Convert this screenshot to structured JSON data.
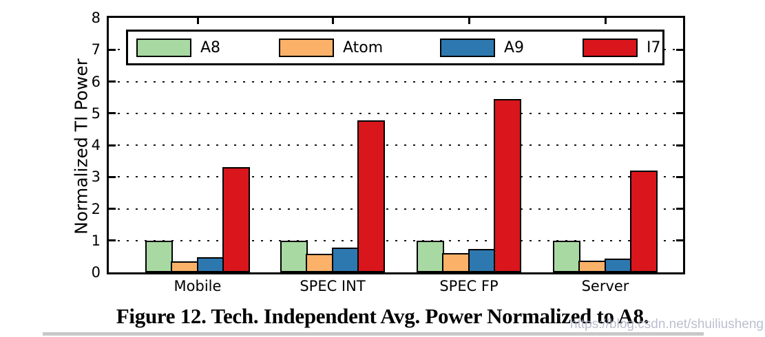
{
  "figure": {
    "caption": "Figure 12. Tech. Independent Avg. Power Normalized to A8.",
    "watermark": "https://blog.csdn.net/shuiliusheng"
  },
  "chart_data": {
    "type": "bar",
    "title": "",
    "xlabel": "",
    "ylabel": "Normalized TI Power",
    "ylim": [
      0,
      8
    ],
    "yticks": [
      0,
      1,
      2,
      3,
      4,
      5,
      6,
      7,
      8
    ],
    "grid_values": [
      1,
      2,
      3,
      4,
      5,
      6,
      7
    ],
    "grid_style": "dotted",
    "legend_position": "top-inside",
    "bar_edge_color": "#000000",
    "categories": [
      "Mobile",
      "SPEC INT",
      "SPEC FP",
      "Server"
    ],
    "series": [
      {
        "name": "A8",
        "color": "#a8d9a2",
        "values": [
          1.0,
          1.0,
          1.0,
          1.0
        ]
      },
      {
        "name": "Atom",
        "color": "#fbb168",
        "values": [
          0.35,
          0.58,
          0.6,
          0.37
        ]
      },
      {
        "name": "A9",
        "color": "#2e78b0",
        "values": [
          0.48,
          0.78,
          0.73,
          0.43
        ]
      },
      {
        "name": "I7",
        "color": "#d9161c",
        "values": [
          3.3,
          4.78,
          5.45,
          3.2
        ]
      }
    ]
  }
}
